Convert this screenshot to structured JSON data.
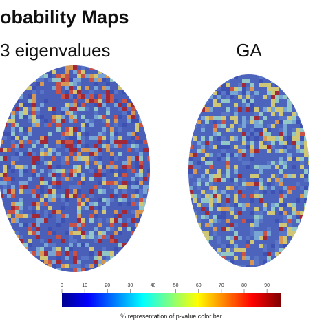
{
  "title": "obability Maps",
  "panels": [
    {
      "label": "3 eigenvalues"
    },
    {
      "label": "GA"
    }
  ],
  "colorbar": {
    "lim": [
      0,
      96
    ],
    "ticks": [
      0,
      10,
      20,
      30,
      40,
      50,
      60,
      70,
      80,
      90
    ],
    "label": "% representation of p-value color bar"
  }
}
